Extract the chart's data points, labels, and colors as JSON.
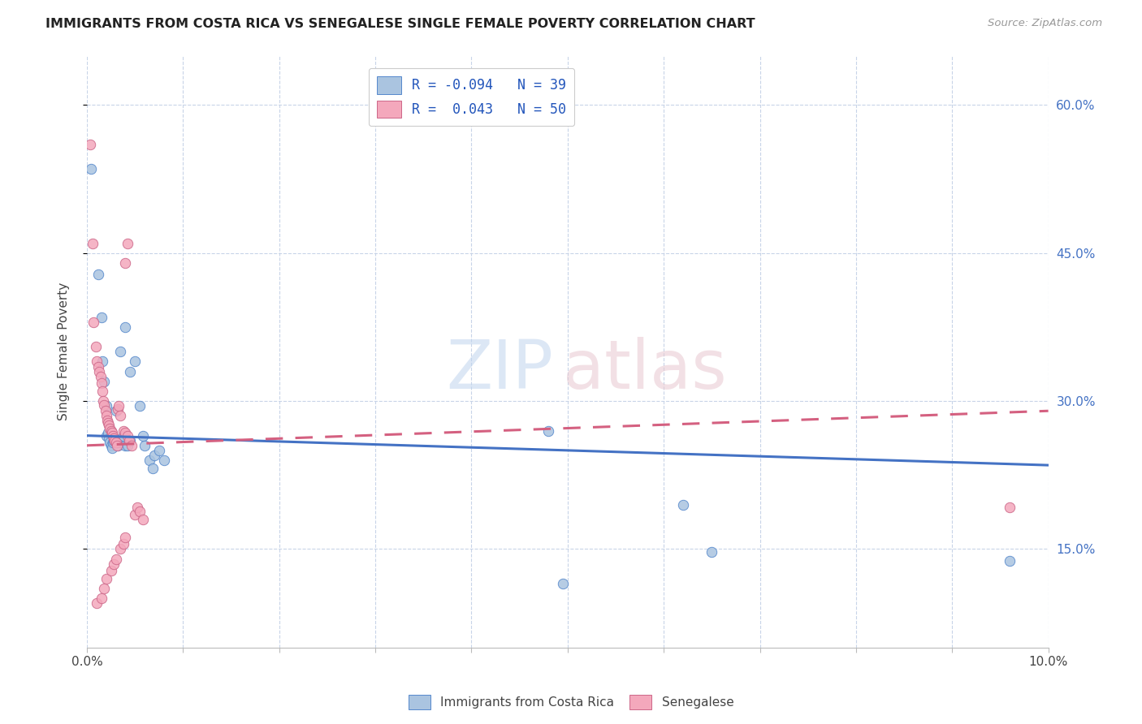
{
  "title": "IMMIGRANTS FROM COSTA RICA VS SENEGALESE SINGLE FEMALE POVERTY CORRELATION CHART",
  "source": "Source: ZipAtlas.com",
  "ylabel": "Single Female Poverty",
  "blue_color": "#aac4e0",
  "pink_color": "#f4a8bc",
  "blue_edge_color": "#5588cc",
  "pink_edge_color": "#cc6688",
  "blue_line_color": "#4472c4",
  "pink_line_color": "#d46080",
  "background_color": "#ffffff",
  "grid_color": "#c8d4e8",
  "xmin": 0.0,
  "xmax": 0.1,
  "ymin": 0.05,
  "ymax": 0.65,
  "ytick_vals": [
    0.15,
    0.3,
    0.45,
    0.6
  ],
  "ytick_labels": [
    "15.0%",
    "30.0%",
    "45.0%",
    "60.0%"
  ],
  "blue_dots": [
    [
      0.0004,
      0.535
    ],
    [
      0.0012,
      0.428
    ],
    [
      0.0015,
      0.385
    ],
    [
      0.0016,
      0.34
    ],
    [
      0.0018,
      0.32
    ],
    [
      0.002,
      0.295
    ],
    [
      0.002,
      0.265
    ],
    [
      0.0022,
      0.268
    ],
    [
      0.0023,
      0.262
    ],
    [
      0.0024,
      0.258
    ],
    [
      0.0025,
      0.255
    ],
    [
      0.0026,
      0.252
    ],
    [
      0.0027,
      0.258
    ],
    [
      0.0028,
      0.26
    ],
    [
      0.003,
      0.258
    ],
    [
      0.0032,
      0.255
    ],
    [
      0.0035,
      0.258
    ],
    [
      0.0038,
      0.265
    ],
    [
      0.004,
      0.255
    ],
    [
      0.0042,
      0.255
    ],
    [
      0.0045,
      0.26
    ],
    [
      0.003,
      0.29
    ],
    [
      0.0035,
      0.35
    ],
    [
      0.004,
      0.375
    ],
    [
      0.0045,
      0.33
    ],
    [
      0.005,
      0.34
    ],
    [
      0.0055,
      0.295
    ],
    [
      0.0058,
      0.265
    ],
    [
      0.006,
      0.255
    ],
    [
      0.0065,
      0.24
    ],
    [
      0.0068,
      0.232
    ],
    [
      0.007,
      0.245
    ],
    [
      0.0075,
      0.25
    ],
    [
      0.008,
      0.24
    ],
    [
      0.048,
      0.27
    ],
    [
      0.0495,
      0.115
    ],
    [
      0.062,
      0.195
    ],
    [
      0.065,
      0.147
    ],
    [
      0.096,
      0.138
    ]
  ],
  "pink_dots": [
    [
      0.0003,
      0.56
    ],
    [
      0.0006,
      0.46
    ],
    [
      0.0007,
      0.38
    ],
    [
      0.0009,
      0.355
    ],
    [
      0.001,
      0.34
    ],
    [
      0.0012,
      0.335
    ],
    [
      0.0013,
      0.33
    ],
    [
      0.0014,
      0.325
    ],
    [
      0.0015,
      0.318
    ],
    [
      0.0016,
      0.31
    ],
    [
      0.0017,
      0.3
    ],
    [
      0.0018,
      0.296
    ],
    [
      0.0019,
      0.29
    ],
    [
      0.002,
      0.285
    ],
    [
      0.0021,
      0.28
    ],
    [
      0.0022,
      0.278
    ],
    [
      0.0023,
      0.275
    ],
    [
      0.0024,
      0.272
    ],
    [
      0.0025,
      0.27
    ],
    [
      0.0026,
      0.268
    ],
    [
      0.0027,
      0.265
    ],
    [
      0.0028,
      0.262
    ],
    [
      0.0029,
      0.26
    ],
    [
      0.003,
      0.258
    ],
    [
      0.0031,
      0.255
    ],
    [
      0.0032,
      0.292
    ],
    [
      0.0033,
      0.295
    ],
    [
      0.0035,
      0.285
    ],
    [
      0.0038,
      0.27
    ],
    [
      0.004,
      0.268
    ],
    [
      0.0042,
      0.265
    ],
    [
      0.0044,
      0.26
    ],
    [
      0.0046,
      0.255
    ],
    [
      0.005,
      0.185
    ],
    [
      0.0052,
      0.192
    ],
    [
      0.0055,
      0.188
    ],
    [
      0.0058,
      0.18
    ],
    [
      0.004,
      0.44
    ],
    [
      0.0042,
      0.46
    ],
    [
      0.001,
      0.095
    ],
    [
      0.0015,
      0.1
    ],
    [
      0.0018,
      0.11
    ],
    [
      0.002,
      0.12
    ],
    [
      0.0025,
      0.128
    ],
    [
      0.0028,
      0.135
    ],
    [
      0.003,
      0.14
    ],
    [
      0.0035,
      0.15
    ],
    [
      0.0038,
      0.155
    ],
    [
      0.004,
      0.162
    ],
    [
      0.096,
      0.192
    ]
  ]
}
